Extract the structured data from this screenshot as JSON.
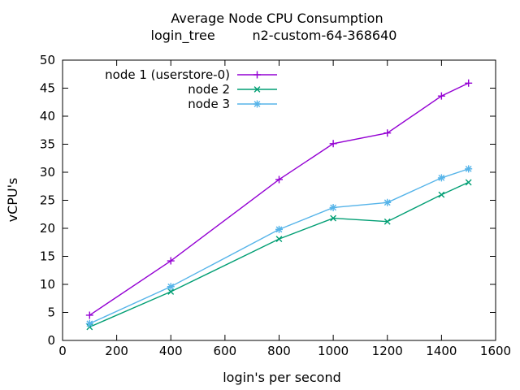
{
  "window": {
    "background": "#ffffff"
  },
  "chart_data": {
    "type": "line",
    "title": "Average Node CPU Consumption",
    "subtitle": "login_tree         n2-custom-64-368640",
    "subtitle_parts": [
      "login_tree",
      "n2-custom-64-368640"
    ],
    "xlabel": "login's per second",
    "ylabel": "vCPU's",
    "xlim": [
      0,
      1600
    ],
    "ylim": [
      0,
      50
    ],
    "xtick_step": 200,
    "ytick_step": 5,
    "xticks": [
      0,
      200,
      400,
      600,
      800,
      1000,
      1200,
      1400,
      1600
    ],
    "yticks": [
      0,
      5,
      10,
      15,
      20,
      25,
      30,
      35,
      40,
      45,
      50
    ],
    "grid": false,
    "legend_position": "top-left-inside",
    "x": [
      100,
      400,
      800,
      1000,
      1200,
      1400,
      1500
    ],
    "series": [
      {
        "name": "node 1 (userstore-0)",
        "color": "#9400d3",
        "marker": "plus",
        "values": [
          4.5,
          14.2,
          28.7,
          35.1,
          37.0,
          43.6,
          45.9
        ]
      },
      {
        "name": "node 2",
        "color": "#009e73",
        "marker": "cross",
        "values": [
          2.4,
          8.7,
          18.1,
          21.8,
          21.2,
          26.0,
          28.2
        ]
      },
      {
        "name": "node 3",
        "color": "#56b4e9",
        "marker": "asterisk",
        "values": [
          3.0,
          9.6,
          19.8,
          23.7,
          24.6,
          29.0,
          30.6
        ]
      }
    ],
    "colors": {
      "text": "#000000",
      "border": "#000000",
      "background": "#ffffff"
    }
  }
}
